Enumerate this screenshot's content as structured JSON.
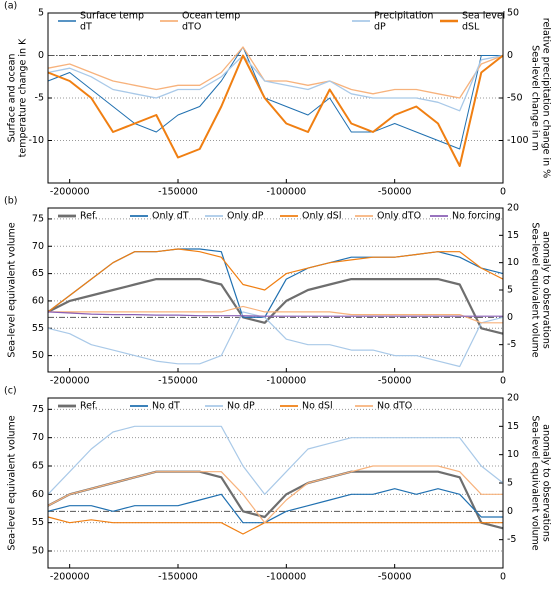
{
  "chart_data": [
    {
      "type": "line",
      "panel": "(a)",
      "ylabel": [
        "Surface and ocean",
        "temperature change in K"
      ],
      "y2label": [
        "Sea-level change in m",
        "relative precipitation change in %"
      ],
      "x": [
        -210000,
        -200000,
        -190000,
        -180000,
        -170000,
        -160000,
        -150000,
        -140000,
        -130000,
        -120000,
        -110000,
        -100000,
        -90000,
        -80000,
        -70000,
        -60000,
        -50000,
        -40000,
        -30000,
        -20000,
        -10000,
        0
      ],
      "xlim": [
        -210000,
        0
      ],
      "xticks": [
        -200000,
        -150000,
        -100000,
        -50000,
        0
      ],
      "ylim": [
        -15,
        5
      ],
      "yticks": [
        -10,
        -5,
        0,
        5
      ],
      "y2lim": [
        -150,
        50
      ],
      "y2ticks": [
        -100,
        -50,
        0,
        50
      ],
      "hline": 0,
      "grid": true,
      "series": [
        {
          "name": [
            "Surface temp",
            "dT"
          ],
          "color": "#2070b0",
          "width": 1,
          "values": [
            -3,
            -2,
            -4,
            -6,
            -8,
            -9,
            -7,
            -6,
            -3,
            1,
            -5,
            -6,
            -7,
            -5,
            -9,
            -9,
            -8,
            -9,
            -10,
            -11,
            0,
            0
          ]
        },
        {
          "name": [
            "Ocean temp",
            "dTO"
          ],
          "color": "#f7b27c",
          "width": 1.3,
          "values": [
            -1.5,
            -1,
            -2,
            -3,
            -3.5,
            -4,
            -3.5,
            -3.5,
            -2,
            1,
            -3,
            -3,
            -3.5,
            -3,
            -4,
            -4.5,
            -4,
            -4,
            -4.5,
            -5,
            -1,
            0
          ]
        },
        {
          "name": [
            "Precipitation",
            "dP"
          ],
          "color": "#a9c9e8",
          "width": 1.3,
          "axis": "y2",
          "values": [
            -20,
            -15,
            -25,
            -40,
            -45,
            -50,
            -40,
            -40,
            -25,
            0,
            -30,
            -35,
            -40,
            -30,
            -45,
            -50,
            -50,
            -50,
            -55,
            -65,
            -5,
            0
          ]
        },
        {
          "name": [
            "Sea level",
            "dSL"
          ],
          "color": "#f07f12",
          "width": 2,
          "axis": "y2",
          "values": [
            -20,
            -30,
            -50,
            -90,
            -80,
            -70,
            -120,
            -110,
            -60,
            0,
            -50,
            -80,
            -90,
            -40,
            -80,
            -90,
            -70,
            -60,
            -80,
            -130,
            -20,
            0
          ]
        }
      ]
    },
    {
      "type": "line",
      "panel": "(b)",
      "ylabel": [
        "Sea-level equivalent volume"
      ],
      "y2label": [
        "Sea-level equivalent volume",
        "anomaly to observations"
      ],
      "x": [
        -210000,
        -200000,
        -190000,
        -180000,
        -170000,
        -160000,
        -150000,
        -140000,
        -130000,
        -120000,
        -110000,
        -100000,
        -90000,
        -80000,
        -70000,
        -60000,
        -50000,
        -40000,
        -30000,
        -20000,
        -10000,
        0
      ],
      "xlim": [
        -210000,
        0
      ],
      "xticks": [
        -200000,
        -150000,
        -100000,
        -50000,
        0
      ],
      "ylim": [
        47,
        77
      ],
      "yticks": [
        50,
        55,
        60,
        65,
        70,
        75
      ],
      "y2lim": [
        -10,
        20
      ],
      "y2ticks": [
        -5,
        0,
        5,
        10,
        15,
        20
      ],
      "hline": 57,
      "grid": true,
      "series": [
        {
          "name": [
            "Ref."
          ],
          "color": "#6e6e6e",
          "width": 2.2,
          "values": [
            58,
            60,
            61,
            62,
            63,
            64,
            64,
            64,
            63,
            57,
            56,
            60,
            62,
            63,
            64,
            64,
            64,
            64,
            64,
            63,
            55,
            54
          ]
        },
        {
          "name": [
            "Only dT"
          ],
          "color": "#2070b0",
          "width": 1.2,
          "values": [
            58,
            61,
            64,
            67,
            69,
            69,
            69.5,
            69.5,
            69,
            57,
            57,
            64,
            66,
            67,
            68,
            68,
            68,
            68.5,
            69,
            68,
            66,
            65
          ]
        },
        {
          "name": [
            "Only dP"
          ],
          "color": "#a9c9e8",
          "width": 1.2,
          "values": [
            55,
            54,
            52,
            51,
            50,
            49,
            48.5,
            48.5,
            50,
            58,
            57,
            53,
            52,
            52,
            51,
            51,
            50,
            50,
            49,
            48,
            56,
            57
          ]
        },
        {
          "name": [
            "Only dSl"
          ],
          "color": "#f07f12",
          "width": 1.2,
          "values": [
            58,
            61,
            64,
            67,
            69,
            69,
            69.5,
            69,
            68,
            63,
            62,
            65,
            66,
            67,
            67.5,
            68,
            68,
            68.5,
            69,
            69,
            66,
            64
          ]
        },
        {
          "name": [
            "Only dTO"
          ],
          "color": "#f7b27c",
          "width": 1.2,
          "values": [
            58,
            58,
            58,
            58,
            58,
            58,
            58,
            58,
            58,
            59,
            58,
            58,
            58,
            58,
            57.5,
            57.5,
            57.5,
            57.5,
            57.5,
            57.5,
            56,
            56
          ]
        },
        {
          "name": [
            "No forcing"
          ],
          "color": "#8a5fb5",
          "width": 1.2,
          "values": [
            58,
            57.8,
            57.6,
            57.5,
            57.5,
            57.4,
            57.4,
            57.3,
            57.3,
            57.3,
            57.2,
            57.2,
            57.2,
            57.2,
            57.2,
            57.2,
            57.2,
            57.2,
            57.2,
            57.2,
            57.2,
            57.2
          ]
        }
      ]
    },
    {
      "type": "line",
      "panel": "(c)",
      "ylabel": [
        "Sea-level equivalent volume"
      ],
      "y2label": [
        "Sea-level equivalent volume",
        "anomaly to observations"
      ],
      "x": [
        -210000,
        -200000,
        -190000,
        -180000,
        -170000,
        -160000,
        -150000,
        -140000,
        -130000,
        -120000,
        -110000,
        -100000,
        -90000,
        -80000,
        -70000,
        -60000,
        -50000,
        -40000,
        -30000,
        -20000,
        -10000,
        0
      ],
      "xlim": [
        -210000,
        0
      ],
      "xticks": [
        -200000,
        -150000,
        -100000,
        -50000,
        0
      ],
      "ylim": [
        47,
        77
      ],
      "yticks": [
        50,
        55,
        60,
        65,
        70,
        75
      ],
      "y2lim": [
        -10,
        20
      ],
      "y2ticks": [
        -5,
        0,
        5,
        10,
        15,
        20
      ],
      "hline": 57,
      "grid": true,
      "series": [
        {
          "name": [
            "Ref."
          ],
          "color": "#6e6e6e",
          "width": 2.2,
          "values": [
            58,
            60,
            61,
            62,
            63,
            64,
            64,
            64,
            63,
            57,
            56,
            60,
            62,
            63,
            64,
            64,
            64,
            64,
            64,
            63,
            55,
            54
          ]
        },
        {
          "name": [
            "No dT"
          ],
          "color": "#2070b0",
          "width": 1.2,
          "values": [
            57,
            58,
            58,
            57,
            58,
            58,
            58,
            59,
            60,
            55,
            55,
            57,
            58,
            59,
            60,
            60,
            61,
            60,
            61,
            60,
            56,
            56
          ]
        },
        {
          "name": [
            "No dP"
          ],
          "color": "#a9c9e8",
          "width": 1.2,
          "values": [
            60,
            64,
            68,
            71,
            72,
            72,
            72,
            72,
            72,
            65,
            60,
            64,
            68,
            69,
            70,
            70,
            70,
            70,
            70,
            70,
            65,
            62
          ]
        },
        {
          "name": [
            "No dSl"
          ],
          "color": "#f07f12",
          "width": 1.2,
          "values": [
            56,
            55,
            55.5,
            55,
            55,
            55,
            55,
            55,
            55,
            53,
            55,
            55,
            55,
            55,
            55,
            55,
            55,
            55,
            55,
            55,
            55,
            55
          ]
        },
        {
          "name": [
            "No dTO"
          ],
          "color": "#f7b27c",
          "width": 1.2,
          "values": [
            58,
            60,
            61,
            62,
            63,
            64,
            64,
            64,
            64,
            60,
            55,
            59,
            62,
            63,
            64,
            65,
            65,
            65,
            65,
            64,
            60,
            60
          ]
        }
      ]
    }
  ]
}
